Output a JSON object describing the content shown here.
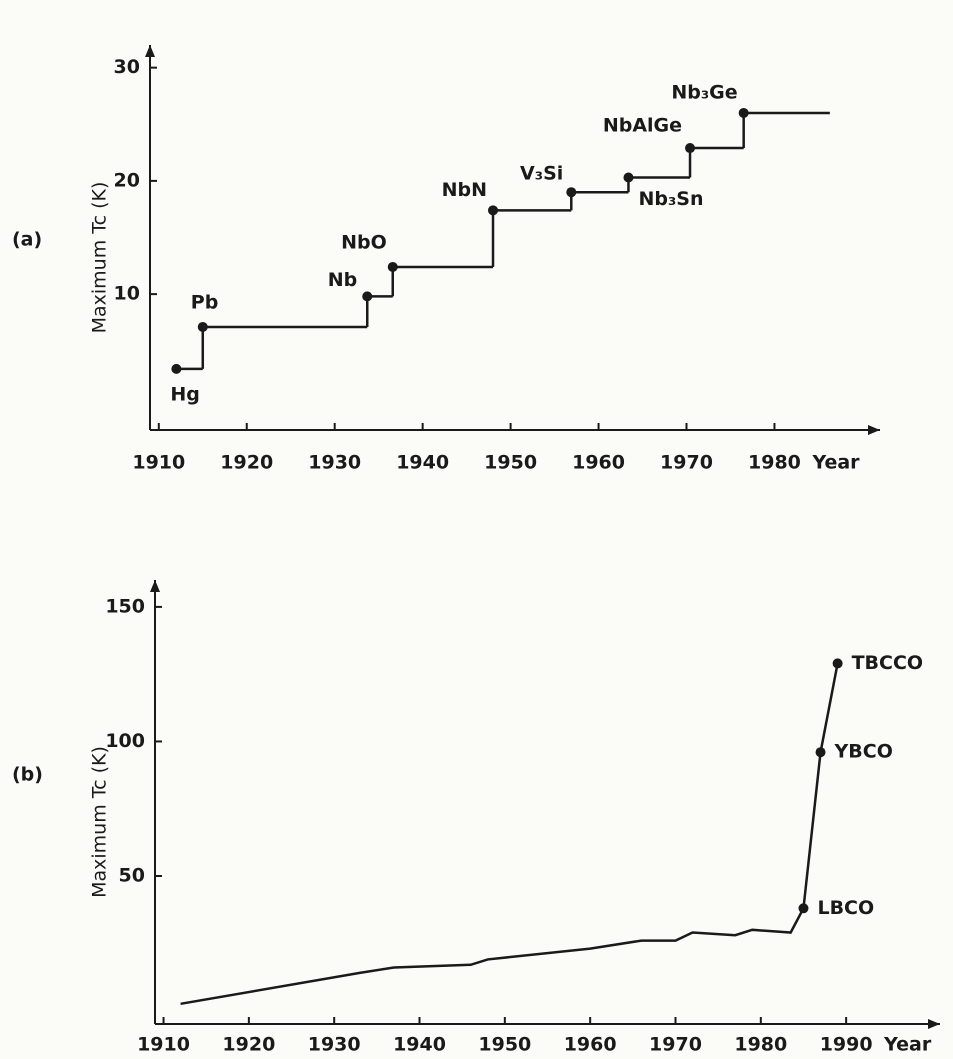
{
  "chart_data": [
    {
      "type": "step",
      "panel_label": "(a)",
      "ylabel": "Maximum Tc (K)",
      "xlabel": "Year",
      "x": [
        1912,
        1915,
        1933.7,
        1936.6,
        1948,
        1956.9,
        1963.4,
        1970.4,
        1976.5,
        1986.3
      ],
      "values": [
        3.4,
        7.1,
        9.8,
        12.4,
        17.4,
        19,
        20.3,
        22.9,
        26,
        26
      ],
      "point_labels": [
        "Hg",
        "Pb",
        "Nb",
        "NbO",
        "NbN",
        "V₃Si",
        "Nb₃Sn",
        "NbAlGe",
        "Nb₃Ge",
        null
      ],
      "color": "#1a1a1a",
      "xlim": [
        1909,
        1992
      ],
      "ylim": [
        -2,
        32
      ],
      "xticks": [
        1910,
        1920,
        1930,
        1940,
        1950,
        1960,
        1970,
        1980
      ],
      "yticks": [
        10,
        20,
        30
      ]
    },
    {
      "type": "line",
      "panel_label": "(b)",
      "ylabel": "Maximum Tc (K)",
      "xlabel": "Year",
      "x": [
        1912,
        1933,
        1937,
        1946,
        1948,
        1960,
        1966,
        1970,
        1972,
        1977,
        1979,
        1983.5,
        1985,
        1987,
        1989
      ],
      "values": [
        2.5,
        14,
        16,
        17,
        19,
        23,
        26,
        26,
        29,
        28,
        30,
        29,
        38,
        96,
        129
      ],
      "point_labels": [
        null,
        null,
        null,
        null,
        null,
        null,
        null,
        null,
        null,
        null,
        null,
        null,
        "LBCO",
        "YBCO",
        "TBCCO"
      ],
      "color": "#1a1a1a",
      "xlim": [
        1909,
        2001
      ],
      "ylim": [
        -5,
        160
      ],
      "xticks": [
        1910,
        1920,
        1930,
        1940,
        1950,
        1960,
        1970,
        1980,
        1990
      ],
      "yticks": [
        50,
        100,
        150
      ]
    }
  ]
}
